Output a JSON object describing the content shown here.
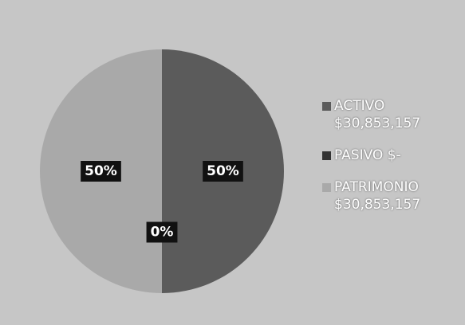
{
  "chart_data": {
    "type": "pie",
    "categories": [
      "ACTIVO $30,853,157",
      "PASIVO $-",
      "PATRIMONIO $30,853,157"
    ],
    "values": [
      50,
      0,
      50
    ],
    "value_labels": [
      "50%",
      "0%",
      "50%"
    ],
    "colors": [
      "#5b5b5b",
      "#333333",
      "#a9a9a9"
    ],
    "legend": "right"
  }
}
